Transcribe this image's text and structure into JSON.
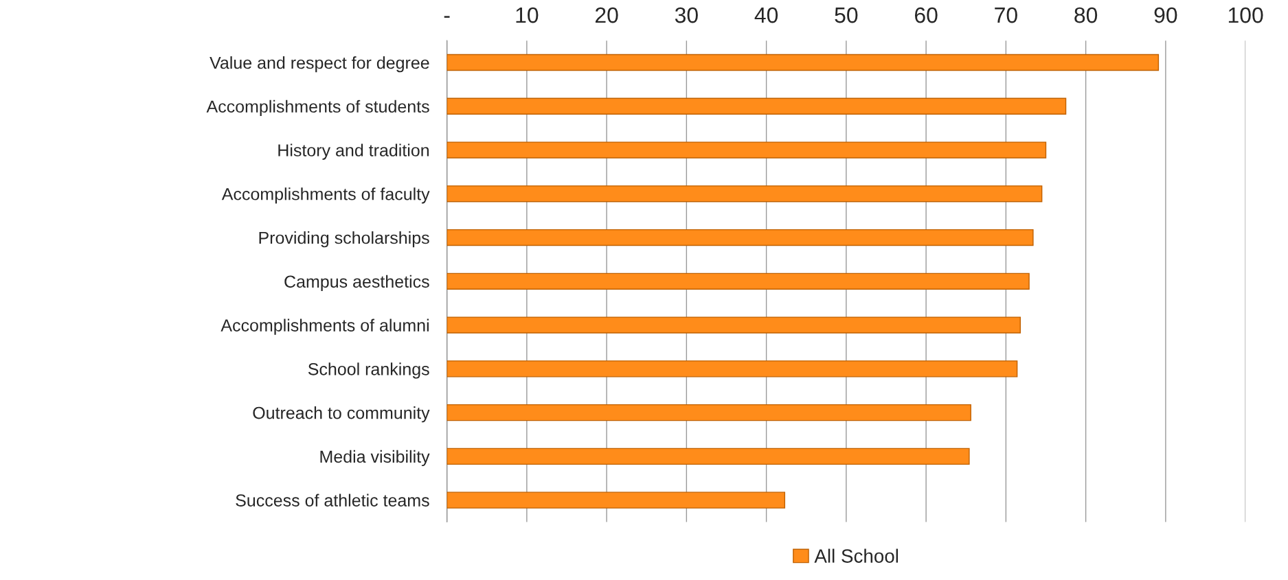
{
  "chart_data": {
    "type": "bar",
    "orientation": "horizontal",
    "categories": [
      "Value and respect for degree",
      "Accomplishments of students",
      "History and tradition",
      "Accomplishments of faculty",
      "Providing scholarships",
      "Campus aesthetics",
      "Accomplishments of alumni",
      "School rankings",
      "Outreach to community",
      "Media visibility",
      "Success of athletic teams"
    ],
    "series": [
      {
        "name": "All School",
        "color": "#ff8c1a",
        "values": [
          89.1,
          77.5,
          75.0,
          74.5,
          73.4,
          72.9,
          71.8,
          71.4,
          65.6,
          65.4,
          42.3
        ]
      }
    ],
    "xlim": [
      0,
      100
    ],
    "xticks": [
      {
        "value": 0,
        "label": "-"
      },
      10,
      20,
      30,
      40,
      50,
      60,
      70,
      80,
      90,
      100
    ],
    "grid": "x",
    "legend": "bottom"
  }
}
